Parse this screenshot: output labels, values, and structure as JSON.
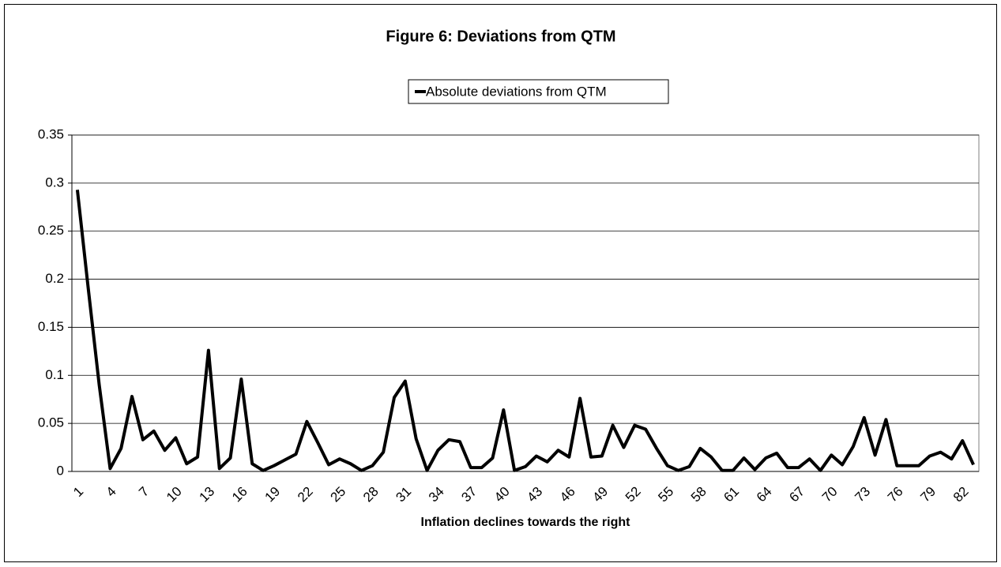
{
  "chart_data": {
    "type": "line",
    "title": "Figure 6: Deviations from QTM",
    "x_label": "Inflation declines towards the right",
    "categories": [
      "1",
      null,
      null,
      "4",
      null,
      null,
      "7",
      null,
      null,
      "10",
      null,
      null,
      "13",
      null,
      null,
      "16",
      null,
      null,
      "19",
      null,
      null,
      "22",
      null,
      null,
      "25",
      null,
      null,
      "28",
      null,
      null,
      "31",
      null,
      null,
      "34",
      null,
      null,
      "37",
      null,
      null,
      "40",
      null,
      null,
      "43",
      null,
      null,
      "46",
      null,
      null,
      "49",
      null,
      null,
      "52",
      null,
      null,
      "55",
      null,
      null,
      "58",
      null,
      null,
      "61",
      null,
      null,
      "64",
      null,
      null,
      "67",
      null,
      null,
      "70",
      null,
      null,
      "73",
      null,
      null,
      "76",
      null,
      null,
      "79",
      null,
      null,
      "82",
      null
    ],
    "series": [
      {
        "name": "Absolute deviations from QTM",
        "color": "#000000",
        "values": [
          0.293,
          0.19,
          0.09,
          0.003,
          0.024,
          0.078,
          0.033,
          0.042,
          0.022,
          0.035,
          0.008,
          0.015,
          0.126,
          0.003,
          0.014,
          0.096,
          0.008,
          0.001,
          0.006,
          0.012,
          0.018,
          0.052,
          0.03,
          0.007,
          0.013,
          0.008,
          0.001,
          0.006,
          0.02,
          0.077,
          0.094,
          0.034,
          0.001,
          0.022,
          0.033,
          0.031,
          0.004,
          0.004,
          0.014,
          0.064,
          0.001,
          0.005,
          0.016,
          0.01,
          0.022,
          0.015,
          0.076,
          0.015,
          0.016,
          0.048,
          0.025,
          0.048,
          0.044,
          0.024,
          0.006,
          0.001,
          0.005,
          0.024,
          0.015,
          0.001,
          0.001,
          0.014,
          0.002,
          0.014,
          0.019,
          0.004,
          0.004,
          0.013,
          0.001,
          0.017,
          0.007,
          0.026,
          0.056,
          0.017,
          0.054,
          0.006,
          0.006,
          0.006,
          0.016,
          0.02,
          0.013,
          0.032,
          0.007
        ]
      }
    ],
    "ylim": [
      0,
      0.35
    ],
    "yticks": [
      0,
      0.05,
      0.1,
      0.15,
      0.2,
      0.25,
      0.3,
      0.35
    ],
    "grid": true,
    "legend": "top"
  }
}
